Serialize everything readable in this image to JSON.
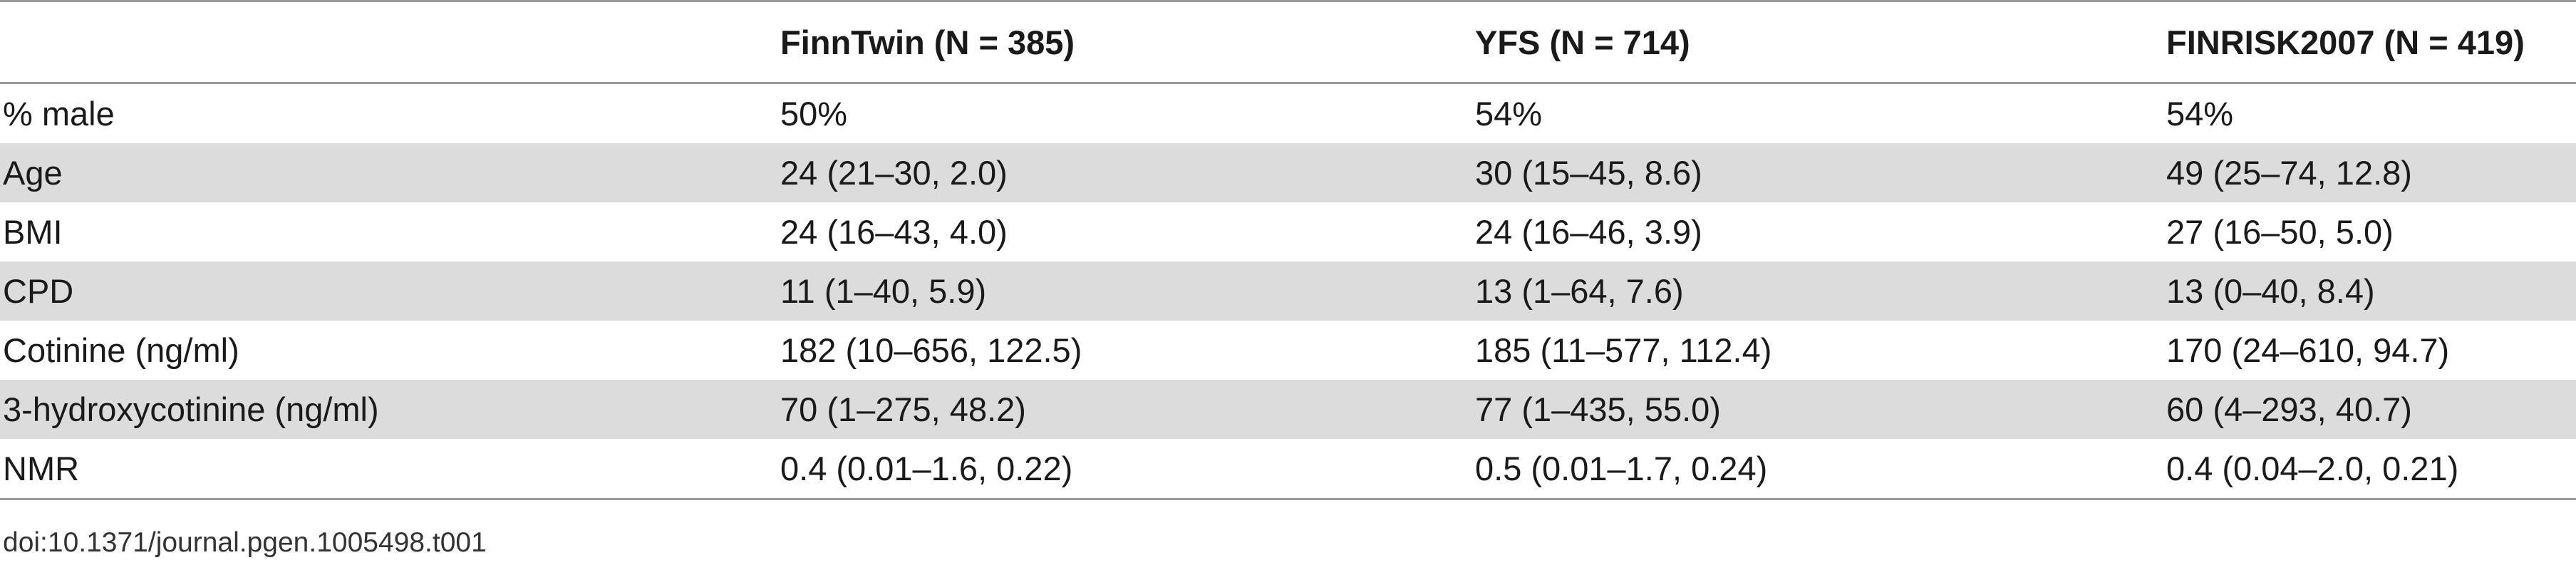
{
  "table": {
    "headers": [
      "",
      "FinnTwin (N = 385)",
      "YFS (N = 714)",
      "FINRISK2007 (N = 419)"
    ],
    "rows": [
      [
        "% male",
        "50%",
        "54%",
        "54%"
      ],
      [
        "Age",
        "24 (21–30, 2.0)",
        "30 (15–45, 8.6)",
        "49 (25–74, 12.8)"
      ],
      [
        "BMI",
        "24 (16–43, 4.0)",
        "24 (16–46, 3.9)",
        "27 (16–50, 5.0)"
      ],
      [
        "CPD",
        "11 (1–40, 5.9)",
        "13 (1–64, 7.6)",
        "13 (0–40, 8.4)"
      ],
      [
        "Cotinine (ng/ml)",
        "182 (10–656, 122.5)",
        "185 (11–577, 112.4)",
        "170 (24–610, 94.7)"
      ],
      [
        "3-hydroxycotinine (ng/ml)",
        "70 (1–275, 48.2)",
        "77 (1–435, 55.0)",
        "60 (4–293, 40.7)"
      ],
      [
        "NMR",
        "0.4 (0.01–1.6, 0.22)",
        "0.5 (0.01–1.7, 0.24)",
        "0.4 (0.04–2.0, 0.21)"
      ]
    ]
  },
  "footer": {
    "doi": "doi:10.1371/journal.pgen.1005498.t001"
  },
  "colors": {
    "stripe": "#dcdcdc",
    "rule": "#9a9a9a"
  }
}
